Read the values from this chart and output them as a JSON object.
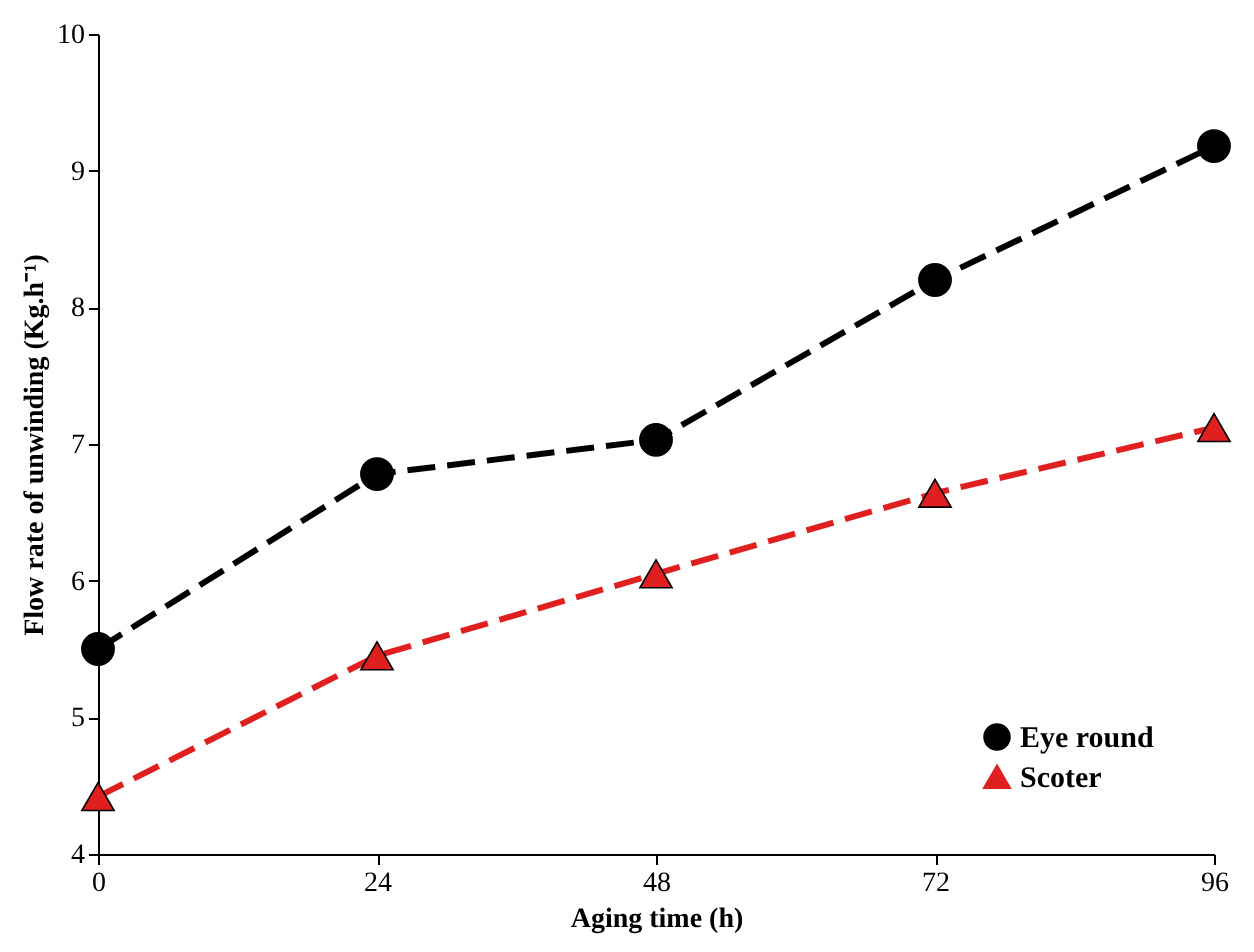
{
  "chart_data": {
    "type": "line",
    "xlabel": "Aging time (h)",
    "ylabel": "Flow rate of unwinding (Kg.h⁻¹)",
    "x": [
      0,
      24,
      48,
      72,
      96
    ],
    "series": [
      {
        "name": "Eye round",
        "color": "#000000",
        "marker": "circle",
        "values": [
          5.5,
          6.78,
          7.03,
          8.2,
          9.18
        ]
      },
      {
        "name": "Scoter",
        "color": "#e02020",
        "marker": "triangle",
        "values": [
          4.42,
          5.45,
          6.05,
          6.64,
          7.12
        ]
      }
    ],
    "xlim": [
      0,
      96
    ],
    "xticks": [
      0,
      24,
      48,
      72,
      96
    ],
    "ylim": [
      4,
      10
    ],
    "yticks": [
      4,
      5,
      6,
      7,
      8,
      9,
      10
    ],
    "grid": false,
    "legend": "bottom right",
    "line_style": "dashed"
  }
}
